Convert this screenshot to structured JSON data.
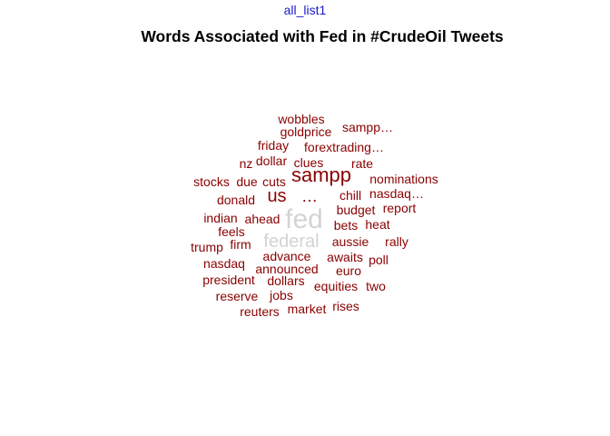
{
  "header": {
    "list_label": "all_list1"
  },
  "chart_data": {
    "type": "wordcloud",
    "title": "Words Associated with Fed in #CrudeOil Tweets",
    "colors": {
      "primary": "#8b0000",
      "high_frequency": "#d3d3d3"
    },
    "words": [
      {
        "text": "fed",
        "size": 30
      },
      {
        "text": "federal",
        "size": 20
      },
      {
        "text": "sampp",
        "size": 22
      },
      {
        "text": "us",
        "size": 20
      },
      {
        "text": "…",
        "size": 18
      },
      {
        "text": "wobbles",
        "size": 14
      },
      {
        "text": "sampp…",
        "size": 14
      },
      {
        "text": "goldprice",
        "size": 14
      },
      {
        "text": "friday",
        "size": 14
      },
      {
        "text": "forextrading…",
        "size": 14
      },
      {
        "text": "nz",
        "size": 14
      },
      {
        "text": "dollar",
        "size": 14
      },
      {
        "text": "clues",
        "size": 14
      },
      {
        "text": "rate",
        "size": 14
      },
      {
        "text": "stocks",
        "size": 14
      },
      {
        "text": "due",
        "size": 14
      },
      {
        "text": "cuts",
        "size": 14
      },
      {
        "text": "nominations",
        "size": 14
      },
      {
        "text": "donald",
        "size": 14
      },
      {
        "text": "chill",
        "size": 14
      },
      {
        "text": "nasdaq…",
        "size": 14
      },
      {
        "text": "budget",
        "size": 14
      },
      {
        "text": "report",
        "size": 14
      },
      {
        "text": "indian",
        "size": 14
      },
      {
        "text": "ahead",
        "size": 14
      },
      {
        "text": "bets",
        "size": 14
      },
      {
        "text": "heat",
        "size": 14
      },
      {
        "text": "feels",
        "size": 14
      },
      {
        "text": "trump",
        "size": 14
      },
      {
        "text": "firm",
        "size": 14
      },
      {
        "text": "aussie",
        "size": 14
      },
      {
        "text": "rally",
        "size": 14
      },
      {
        "text": "advance",
        "size": 14
      },
      {
        "text": "awaits",
        "size": 14
      },
      {
        "text": "nasdaq",
        "size": 14
      },
      {
        "text": "announced",
        "size": 14
      },
      {
        "text": "poll",
        "size": 14
      },
      {
        "text": "euro",
        "size": 14
      },
      {
        "text": "president",
        "size": 14
      },
      {
        "text": "dollars",
        "size": 14
      },
      {
        "text": "equities",
        "size": 14
      },
      {
        "text": "two",
        "size": 14
      },
      {
        "text": "reserve",
        "size": 14
      },
      {
        "text": "jobs",
        "size": 14
      },
      {
        "text": "reuters",
        "size": 14
      },
      {
        "text": "market",
        "size": 14
      },
      {
        "text": "rises",
        "size": 14
      }
    ]
  }
}
